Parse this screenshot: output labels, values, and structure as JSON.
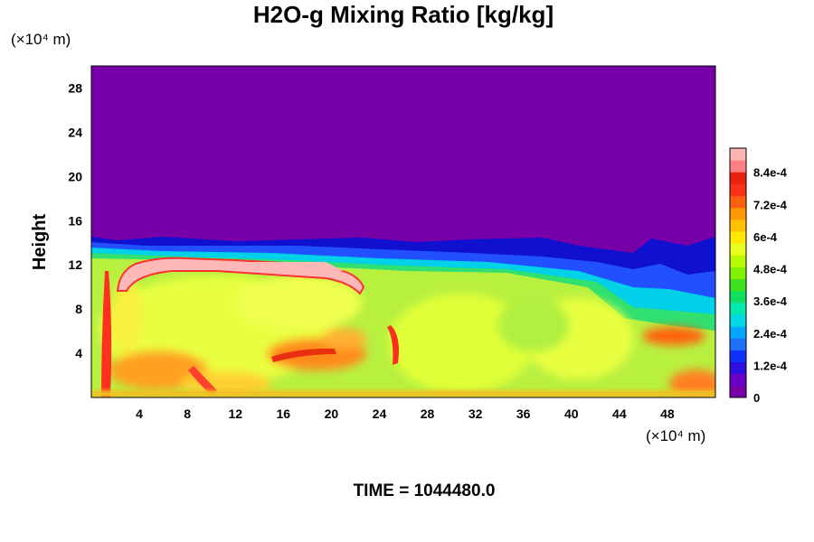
{
  "chart_data": {
    "type": "heatmap",
    "title": "H2O-g Mixing Ratio [kg/kg]",
    "xlabel": "",
    "ylabel": "Height",
    "x_unit_label": "(×10⁴ m)",
    "y_unit_label": "(×10⁴ m)",
    "xlim": [
      0,
      52
    ],
    "ylim": [
      0,
      30
    ],
    "x_ticks": [
      "4",
      "8",
      "12",
      "16",
      "20",
      "24",
      "28",
      "32",
      "36",
      "40",
      "44",
      "48"
    ],
    "y_ticks": [
      "4",
      "8",
      "12",
      "16",
      "20",
      "24",
      "28"
    ],
    "colorbar": {
      "min": 0,
      "max": 0.00093,
      "tick_labels": [
        "0",
        "1.2e-4",
        "2.4e-4",
        "3.6e-4",
        "4.8e-4",
        "6e-4",
        "7.2e-4",
        "8.4e-4"
      ],
      "tick_values": [
        0,
        0.00012,
        0.00024,
        0.00036,
        0.00048,
        0.0006,
        0.00072,
        0.00084
      ]
    },
    "colors": {
      "dry_top": "#7800a8",
      "saturated": "#ffb4b4",
      "ambient": "#d8ff40"
    },
    "time_label": "TIME = 1044480.0"
  }
}
